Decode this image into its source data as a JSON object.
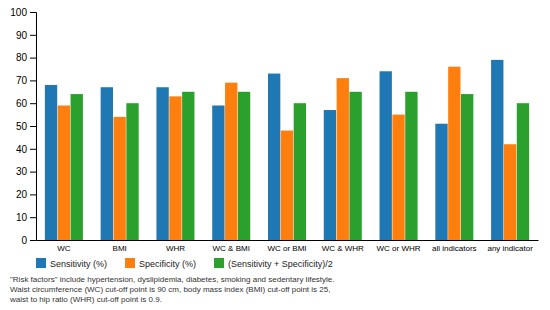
{
  "chart_data": {
    "type": "bar",
    "categories": [
      "WC",
      "BMI",
      "WHR",
      "WC & BMI",
      "WC or BMI",
      "WC & WHR",
      "WC or WHR",
      "all indicators",
      "any indicator"
    ],
    "series": [
      {
        "name": "Sensitivity (%)",
        "values": [
          68,
          67,
          67,
          59,
          73,
          57,
          74,
          51,
          79
        ]
      },
      {
        "name": "Specificity (%)",
        "values": [
          59,
          54,
          63,
          69,
          48,
          71,
          55,
          76,
          42
        ]
      },
      {
        "name": "(Sensitivity + Specificity)/2",
        "values": [
          64,
          60,
          65,
          65,
          60,
          65,
          65,
          64,
          60
        ]
      }
    ],
    "ylim": [
      0,
      100
    ],
    "yticks": [
      0,
      10,
      20,
      30,
      40,
      50,
      60,
      70,
      80,
      90,
      100
    ],
    "grid": false,
    "legend": "bottom",
    "annotations": [
      "\"Risk factors\" include hypertension, dyslipidemia, diabetes, smoking and sedentary lifestyle.",
      "Waist circumference (WC) cut-off point is 90 cm, body mass index (BMI) cut-off point is 25,",
      "waist to hip ratio (WHR) cut-off point is 0.9."
    ]
  }
}
